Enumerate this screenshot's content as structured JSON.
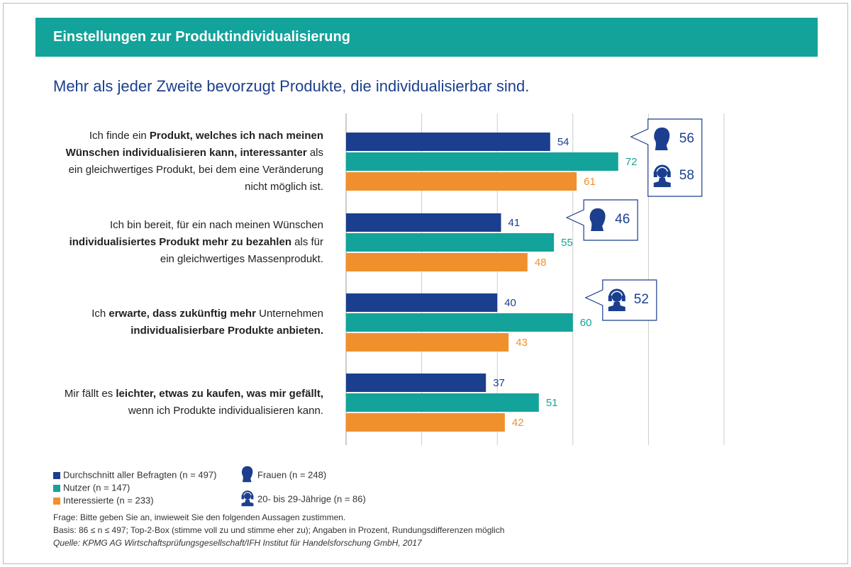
{
  "chart_data": {
    "type": "hbar",
    "title": "Einstellungen zur Produktindividualisierung",
    "subtitle": "Mehr als jeder Zweite bevorzugt Produkte, die individualisierbar sind.",
    "categories": [
      [
        {
          "text": "Ich finde ein ",
          "bold": false
        },
        {
          "text": "Produkt, welches ich nach meinen Wünschen individualisieren kann, interessanter",
          "bold": true
        },
        {
          "text": " als ein gleichwertiges Produkt, bei dem eine Veränderung nicht möglich ist.",
          "bold": false
        }
      ],
      [
        {
          "text": "Ich bin bereit, für ein nach meinen Wünschen ",
          "bold": false
        },
        {
          "text": "individualisiertes Produkt mehr zu bezahlen",
          "bold": true
        },
        {
          "text": " als für ein gleichwertiges Massenprodukt.",
          "bold": false
        }
      ],
      [
        {
          "text": "Ich ",
          "bold": false
        },
        {
          "text": "erwarte, dass zukünftig mehr",
          "bold": true
        },
        {
          "text": " Unterneh­men ",
          "bold": false
        },
        {
          "text": "individualisierbare Produkte anbieten.",
          "bold": true
        }
      ],
      [
        {
          "text": "Mir fällt es ",
          "bold": false
        },
        {
          "text": "leichter, etwas zu kaufen, was mir gefällt,",
          "bold": true
        },
        {
          "text": " wenn ich Produkte individualisieren kann.",
          "bold": false
        }
      ]
    ],
    "series": [
      {
        "name": "Durchschnitt aller Befragten (n = 497)",
        "color": "#1b3f8e",
        "values": [
          54,
          41,
          40,
          37
        ]
      },
      {
        "name": "Nutzer (n = 147)",
        "color": "#14a39a",
        "values": [
          72,
          55,
          60,
          51
        ]
      },
      {
        "name": "Interessierte (n = 233)",
        "color": "#f0902c",
        "values": [
          61,
          48,
          43,
          42
        ]
      }
    ],
    "callouts": [
      {
        "name": "Frauen (n = 248)",
        "icon": "woman",
        "color": "#1b3f8e",
        "values": [
          56,
          46,
          null,
          null
        ]
      },
      {
        "name": "20- bis 29-Jährige (n = 86)",
        "icon": "young",
        "color": "#1b3f8e",
        "values": [
          58,
          null,
          52,
          null
        ]
      }
    ],
    "xlim": [
      0,
      100
    ],
    "xticks": [
      0,
      20,
      40,
      60,
      80,
      100
    ],
    "grid": true,
    "notes": [
      "Frage: Bitte geben Sie an, inwieweit Sie den folgenden Aussagen zustimmen.",
      "Basis: 86 ≤ n ≤ 497; Top-2-Box (stimme voll zu und stimme eher zu); Angaben in Prozent, Rundungsdifferenzen möglich",
      "Quelle: KPMG AG Wirtschaftsprüfungsgesellschaft/IFH Institut für Handelsforschung GmbH, 2017"
    ]
  }
}
